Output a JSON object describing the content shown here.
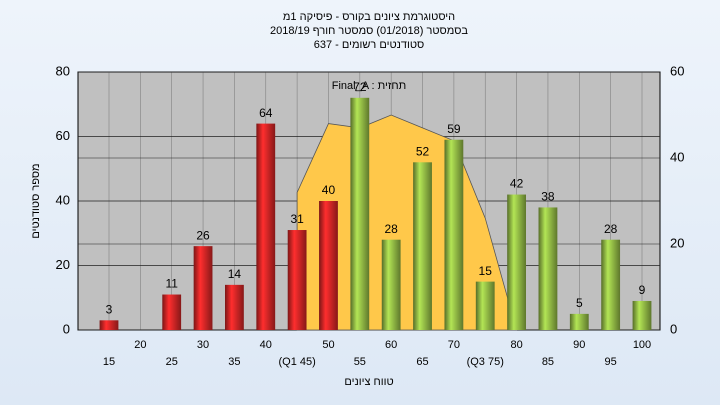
{
  "chart_data": {
    "type": "bar",
    "title_lines": [
      "היסטוגרמת ציונים בקורס - פיסיקה 1מ",
      "בסמסטר  (01/2018)  סמסטר חורף 2018/19",
      "637 - סטודנטים רשומים"
    ],
    "ylabel": "מספר סטודנטים",
    "xlabel": "טווח ציונים",
    "categories": [
      "15",
      "20",
      "25",
      "30",
      "35",
      "40",
      "(Q1 45)",
      "50",
      "55",
      "60",
      "65",
      "70",
      "(Q3 75)",
      "80",
      "85",
      "90",
      "95",
      "100"
    ],
    "series": [
      {
        "values": [
          3,
          null,
          11,
          26,
          14,
          64,
          31,
          40,
          72,
          28,
          52,
          59,
          15,
          42,
          38,
          5,
          28,
          9
        ],
        "colors": [
          "#e02828",
          "#e02828",
          "#e02828",
          "#e02828",
          "#e02828",
          "#e02828",
          "#e02828",
          "#e02828",
          "#9cc74a",
          "#9cc74a",
          "#9cc74a",
          "#9cc74a",
          "#9cc74a",
          "#9cc74a",
          "#9cc74a",
          "#9cc74a",
          "#9cc74a",
          "#9cc74a"
        ]
      },
      {
        "name": "Final_A : תחזית",
        "type": "area",
        "axis": "y2",
        "color": "#ffc84a",
        "values": [
          null,
          null,
          null,
          null,
          null,
          null,
          32,
          48,
          47,
          50,
          47,
          44,
          26,
          0,
          null,
          null,
          null,
          null
        ]
      }
    ],
    "ylim": [
      0,
      80
    ],
    "yticks": [
      0,
      20,
      40,
      60,
      80
    ],
    "y2lim": [
      0,
      60
    ],
    "y2ticks": [
      0,
      20,
      40,
      60
    ],
    "grid": true
  }
}
